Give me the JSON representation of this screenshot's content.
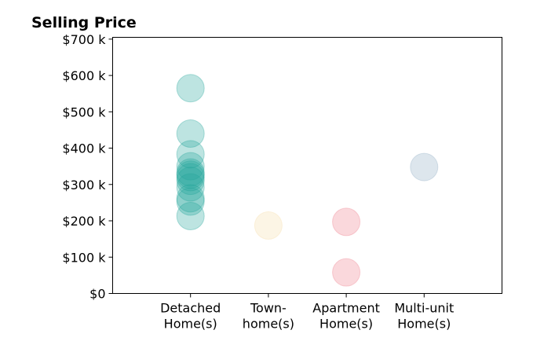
{
  "chart_data": {
    "type": "scatter",
    "title": "Selling Price",
    "xlabel": "",
    "ylabel": "",
    "categories": [
      [
        "Detached",
        "Home(s)"
      ],
      [
        "Town-",
        "home(s)"
      ],
      [
        "Apartment",
        "Home(s)"
      ],
      [
        "Multi-unit",
        "Home(s)"
      ]
    ],
    "xlim": [
      -1,
      4
    ],
    "ylim": [
      0,
      705000
    ],
    "yticks": [
      0,
      100000,
      200000,
      300000,
      400000,
      500000,
      600000,
      700000
    ],
    "ytick_labels": [
      "$0",
      "$100 k",
      "$200 k",
      "$300 k",
      "$400 k",
      "$500 k",
      "$600 k",
      "$700 k"
    ],
    "grid": false,
    "series": [
      {
        "category_index": 0,
        "color": "#26a69a",
        "values": [
          565000,
          440000,
          383000,
          350000,
          333000,
          327000,
          320000,
          310000,
          292000,
          262000,
          253000,
          213000
        ]
      },
      {
        "category_index": 1,
        "color": "#f5deaa",
        "values": [
          187000
        ]
      },
      {
        "category_index": 2,
        "color": "#ef7f8c",
        "values": [
          197000,
          58000
        ]
      },
      {
        "category_index": 3,
        "color": "#8fabc4",
        "values": [
          348000
        ]
      }
    ]
  }
}
